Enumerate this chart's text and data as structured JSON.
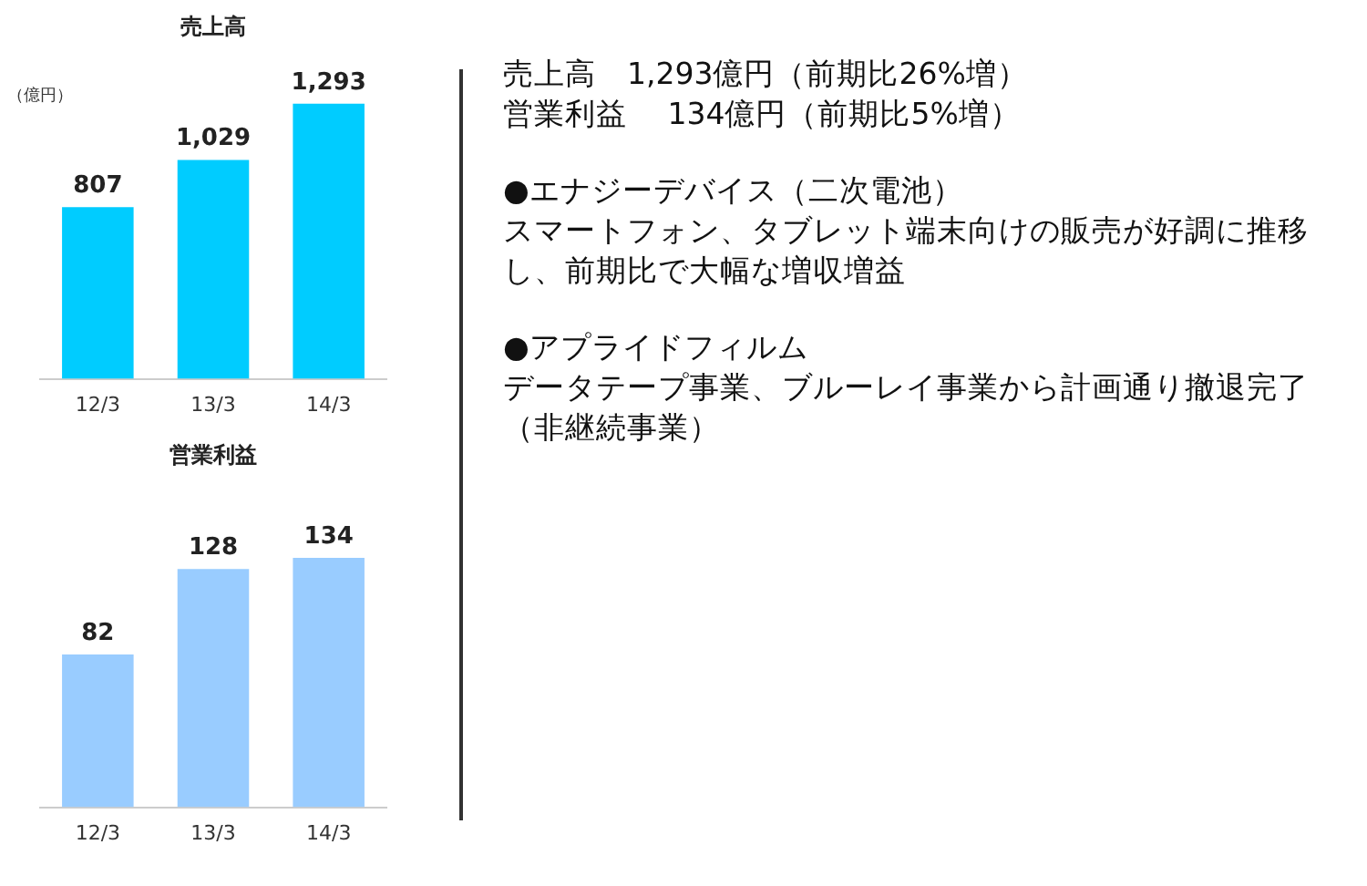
{
  "chart_data": [
    {
      "type": "bar",
      "title": "売上高",
      "ylabel": "（億円）",
      "categories": [
        "12/3",
        "13/3",
        "14/3"
      ],
      "values": [
        807,
        1029,
        1293
      ],
      "value_labels": [
        "807",
        "1,029",
        "1,293"
      ],
      "color": "#00ccff",
      "grid": false,
      "legend": false
    },
    {
      "type": "bar",
      "title": "営業利益",
      "categories": [
        "12/3",
        "13/3",
        "14/3"
      ],
      "values": [
        82,
        128,
        134
      ],
      "value_labels": [
        "82",
        "128",
        "134"
      ],
      "color": "#99ccff",
      "grid": false,
      "legend": false
    },
    {
      "type": "other",
      "annotations": [
        "売上高　1,293億円（前期比26%増）",
        "営業利益　 134億円（前期比5%増）",
        "●エナジーデバイス（二次電池）",
        "スマートフォン、タブレット端末向けの販売が好調に推移し、前期比で大幅な増収増益",
        "●アプライドフィルム",
        "データテープ事業、ブルーレイ事業から計画通り撤退完了（非継続事業）"
      ]
    }
  ]
}
